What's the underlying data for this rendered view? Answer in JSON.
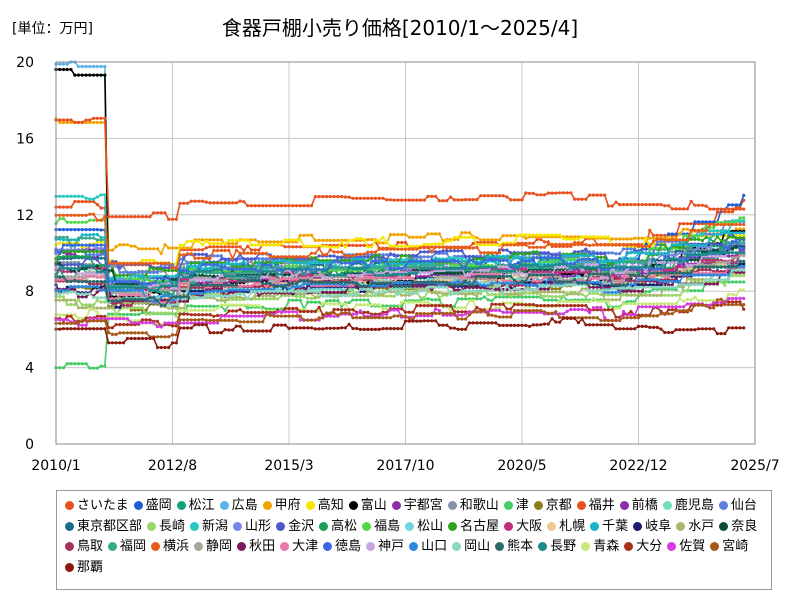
{
  "chart_data": {
    "type": "line",
    "title": "食器戸棚小売り価格[2010/1～2025/4]",
    "unit_label": "[単位：万円]",
    "x_tick_labels": [
      "2010/1",
      "2012/8",
      "2015/3",
      "2017/10",
      "2020/5",
      "2022/12",
      "2025/7"
    ],
    "y_tick_labels": [
      "0",
      "4",
      "8",
      "12",
      "16",
      "20"
    ],
    "xlim": [
      "2010/1",
      "2025/7"
    ],
    "ylim": [
      0,
      20
    ],
    "grid": true,
    "legend_position": "bottom",
    "series": [
      {
        "name": "さいたま",
        "color": "#e8501e",
        "start": 12.5,
        "mid": 10.2,
        "end": 12.6
      },
      {
        "name": "盛岡",
        "color": "#1f5fd6",
        "start": 11.0,
        "mid": 9.2,
        "end": 12.9
      },
      {
        "name": "松江",
        "color": "#12a37c",
        "start": 9.0,
        "mid": 8.6,
        "end": 11.0
      },
      {
        "name": "広島",
        "color": "#5ab4e6",
        "start": 20.0,
        "mid": 8.4,
        "end": 10.5
      },
      {
        "name": "甲府",
        "color": "#f2a300",
        "start": 16.8,
        "mid": 10.6,
        "end": 11.4
      },
      {
        "name": "高知",
        "color": "#f5e600",
        "start": 10.5,
        "mid": 10.4,
        "end": 10.9
      },
      {
        "name": "富山",
        "color": "#000000",
        "start": 19.5,
        "mid": 8.4,
        "end": 11.3
      },
      {
        "name": "宇都宮",
        "color": "#8a2fa8",
        "start": 10.0,
        "mid": 8.9,
        "end": 10.3
      },
      {
        "name": "和歌山",
        "color": "#8593a6",
        "start": 9.4,
        "mid": 9.4,
        "end": 10.4
      },
      {
        "name": "津",
        "color": "#44cc66",
        "start": 4.2,
        "mid": 7.2,
        "end": 9.0
      },
      {
        "name": "京都",
        "color": "#8c7d1a",
        "start": 8.0,
        "mid": 8.0,
        "end": 9.8
      },
      {
        "name": "福井",
        "color": "#e8501e",
        "start": 16.9,
        "mid": 12.6,
        "end": 12.4
      },
      {
        "name": "前橋",
        "color": "#8a2fa8",
        "start": 9.8,
        "mid": 8.6,
        "end": 10.1
      },
      {
        "name": "鹿児島",
        "color": "#6fe0b4",
        "start": 9.2,
        "mid": 8.1,
        "end": 9.7
      },
      {
        "name": "仙台",
        "color": "#5b7fe0",
        "start": 10.1,
        "mid": 9.6,
        "end": 11.7
      },
      {
        "name": "東京都区部",
        "color": "#1a6e8a",
        "start": 9.7,
        "mid": 9.1,
        "end": 10.6
      },
      {
        "name": "長崎",
        "color": "#9ad66a",
        "start": 7.5,
        "mid": 7.6,
        "end": 8.7
      },
      {
        "name": "新潟",
        "color": "#26c9c0",
        "start": 13.0,
        "mid": 9.3,
        "end": 11.8
      },
      {
        "name": "山形",
        "color": "#7a86e6",
        "start": 10.3,
        "mid": 9.0,
        "end": 10.7
      },
      {
        "name": "金沢",
        "color": "#4a5ac8",
        "start": 9.5,
        "mid": 9.7,
        "end": 10.9
      },
      {
        "name": "高松",
        "color": "#1a9e5a",
        "start": 9.6,
        "mid": 8.8,
        "end": 10.4
      },
      {
        "name": "福島",
        "color": "#55d64a",
        "start": 11.6,
        "mid": 9.1,
        "end": 12.2
      },
      {
        "name": "松山",
        "color": "#72d6e0",
        "start": 8.8,
        "mid": 8.2,
        "end": 9.6
      },
      {
        "name": "名古屋",
        "color": "#2fa31f",
        "start": 9.9,
        "mid": 9.5,
        "end": 11.1
      },
      {
        "name": "大阪",
        "color": "#c0307a",
        "start": 9.1,
        "mid": 8.7,
        "end": 10.0
      },
      {
        "name": "札幌",
        "color": "#f0c890",
        "start": 8.6,
        "mid": 8.3,
        "end": 9.4
      },
      {
        "name": "千葉",
        "color": "#1ab3c8",
        "start": 10.8,
        "mid": 9.3,
        "end": 11.4
      },
      {
        "name": "岐阜",
        "color": "#1a1a6e",
        "start": 8.1,
        "mid": 8.0,
        "end": 9.3
      },
      {
        "name": "水戸",
        "color": "#a6b86a",
        "start": 7.3,
        "mid": 7.7,
        "end": 9.1
      },
      {
        "name": "奈良",
        "color": "#0d4a3a",
        "start": 9.3,
        "mid": 8.9,
        "end": 10.2
      },
      {
        "name": "鳥取",
        "color": "#a8305a",
        "start": 8.4,
        "mid": 8.2,
        "end": 9.5
      },
      {
        "name": "福岡",
        "color": "#3aa88a",
        "start": 10.6,
        "mid": 9.0,
        "end": 10.8
      },
      {
        "name": "横浜",
        "color": "#e85c1a",
        "start": 11.8,
        "mid": 9.9,
        "end": 12.1
      },
      {
        "name": "静岡",
        "color": "#a6a69a",
        "start": 8.9,
        "mid": 8.5,
        "end": 9.9
      },
      {
        "name": "秋田",
        "color": "#7a1a5a",
        "start": 7.9,
        "mid": 7.9,
        "end": 9.2
      },
      {
        "name": "大津",
        "color": "#e878a6",
        "start": 8.7,
        "mid": 8.4,
        "end": 9.6
      },
      {
        "name": "徳島",
        "color": "#3a6ae0",
        "start": 10.2,
        "mid": 9.2,
        "end": 10.5
      },
      {
        "name": "神戸",
        "color": "#c8a6e0",
        "start": 9.0,
        "mid": 8.8,
        "end": 10.1
      },
      {
        "name": "山口",
        "color": "#2a8ae0",
        "start": 8.2,
        "mid": 8.1,
        "end": 9.4
      },
      {
        "name": "岡山",
        "color": "#8ad6c0",
        "start": 7.8,
        "mid": 7.8,
        "end": 9.0
      },
      {
        "name": "熊本",
        "color": "#2a6a6a",
        "start": 8.5,
        "mid": 8.3,
        "end": 9.7
      },
      {
        "name": "長野",
        "color": "#1a8a8a",
        "start": 9.1,
        "mid": 8.9,
        "end": 10.3
      },
      {
        "name": "青森",
        "color": "#c8e87a",
        "start": 6.8,
        "mid": 7.0,
        "end": 8.0
      },
      {
        "name": "大分",
        "color": "#a6301a",
        "start": 6.6,
        "mid": 6.8,
        "end": 7.3
      },
      {
        "name": "佐賀",
        "color": "#d63ae0",
        "start": 6.4,
        "mid": 6.6,
        "end": 7.8
      },
      {
        "name": "宮崎",
        "color": "#a65a1a",
        "start": 6.2,
        "mid": 6.5,
        "end": 7.6
      },
      {
        "name": "那覇",
        "color": "#8a1a0d",
        "start": 6.0,
        "mid": 6.0,
        "end": 5.9
      }
    ]
  }
}
